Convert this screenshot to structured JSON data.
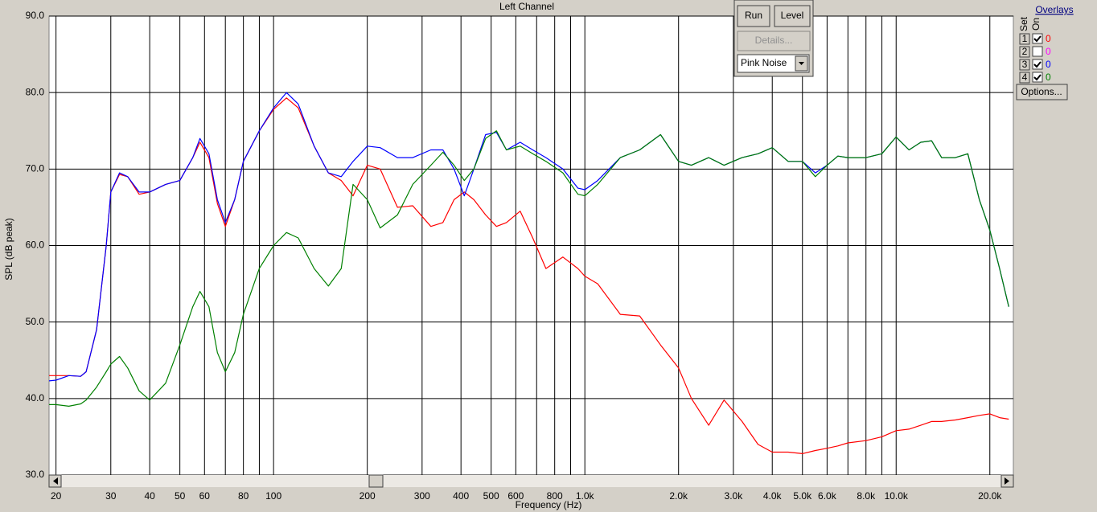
{
  "chart_data": {
    "type": "line",
    "title": "Left Channel",
    "xlabel": "Frequency (Hz)",
    "ylabel": "SPL (dB peak)",
    "log_x": true,
    "grid": true,
    "x": [
      19,
      20,
      22,
      24,
      25,
      27,
      29,
      30,
      32,
      34,
      37,
      40,
      45,
      50,
      55,
      58,
      62,
      66,
      70,
      75,
      80,
      90,
      100,
      110,
      120,
      135,
      150,
      165,
      180,
      200,
      220,
      250,
      280,
      320,
      350,
      380,
      410,
      440,
      480,
      520,
      560,
      620,
      680,
      750,
      850,
      950,
      1000,
      1100,
      1300,
      1500,
      1750,
      2000,
      2200,
      2500,
      2800,
      3200,
      3600,
      4000,
      4500,
      5000,
      5500,
      6000,
      6500,
      7000,
      8000,
      9000,
      10000,
      11000,
      12000,
      13000,
      14000,
      15500,
      17000,
      18500,
      20000,
      21500,
      23000
    ],
    "series": [
      {
        "color": "#ff0000",
        "values": [
          43,
          43,
          43,
          42.9,
          43.5,
          49,
          60,
          67,
          69.3,
          69,
          66.7,
          67,
          68,
          68.5,
          71.5,
          73.5,
          71.5,
          65.5,
          62.5,
          66,
          71,
          75,
          77.8,
          79.3,
          78,
          73,
          69.5,
          68.5,
          66.5,
          70.5,
          70,
          65,
          65.2,
          62.5,
          63,
          66,
          67,
          66,
          64,
          62.5,
          63,
          64.5,
          61,
          57,
          58.5,
          57,
          56,
          55,
          51,
          50.8,
          47,
          44,
          40,
          36.5,
          39.8,
          37,
          34,
          33,
          33,
          32.8,
          33.2,
          33.5,
          33.8,
          34.2,
          34.5,
          35,
          35.8,
          36,
          36.5,
          37,
          37,
          37.2,
          37.5,
          37.8,
          38,
          37.5,
          37.3
        ]
      },
      {
        "color": "#0000ff",
        "values": [
          42.3,
          42.4,
          43,
          42.9,
          43.5,
          49,
          60,
          67,
          69.5,
          69,
          67,
          67,
          68,
          68.5,
          71.5,
          74,
          72,
          66,
          63,
          66,
          71,
          75,
          78,
          80,
          78.5,
          73,
          69.5,
          69,
          71,
          73,
          72.8,
          71.5,
          71.5,
          72.5,
          72.5,
          70,
          66.5,
          70,
          74.5,
          74.8,
          72.5,
          73.5,
          72.5,
          71.5,
          70,
          67.5,
          67.3,
          68.5,
          71.5,
          72.5,
          74.5,
          71,
          70.5,
          71.5,
          70.5,
          71.5,
          72,
          72.8,
          71,
          71,
          69.5,
          70.5,
          71.7,
          71.5,
          71.5,
          72,
          74.2,
          72.5,
          73.5,
          73.7,
          71.5,
          71.5,
          72,
          66,
          62,
          57,
          52
        ]
      },
      {
        "color": "#008000",
        "values": [
          39.2,
          39.2,
          39,
          39.3,
          39.8,
          41.5,
          43.5,
          44.5,
          45.5,
          44,
          41,
          39.8,
          42,
          47,
          52,
          54,
          52,
          46,
          43.5,
          46,
          51,
          57,
          60,
          61.7,
          61,
          57,
          54.7,
          57,
          68,
          66,
          62.3,
          64,
          68,
          70.5,
          72.2,
          70.5,
          68.5,
          70,
          74,
          75,
          72.5,
          73,
          72,
          71,
          69.5,
          66.7,
          66.5,
          68,
          71.5,
          72.5,
          74.5,
          71,
          70.5,
          71.5,
          70.5,
          71.5,
          72,
          72.8,
          71,
          71,
          69,
          70.5,
          71.7,
          71.5,
          71.5,
          72,
          74.2,
          72.5,
          73.5,
          73.7,
          71.5,
          71.5,
          72,
          66,
          62,
          57,
          52
        ]
      }
    ],
    "xlim": [
      19,
      23800
    ],
    "ylim": [
      30,
      90
    ],
    "yticks": [
      {
        "value": 30,
        "label": "30.0"
      },
      {
        "value": 40,
        "label": "40.0"
      },
      {
        "value": 50,
        "label": "50.0"
      },
      {
        "value": 60,
        "label": "60.0"
      },
      {
        "value": 70,
        "label": "70.0"
      },
      {
        "value": 80,
        "label": "80.0"
      },
      {
        "value": 90,
        "label": "90.0"
      }
    ],
    "xticks": [
      20,
      30,
      40,
      50,
      60,
      {
        "value": 70,
        "label": null
      },
      80,
      {
        "value": 90,
        "label": null
      },
      100,
      200,
      300,
      400,
      500,
      600,
      {
        "value": 700,
        "label": null
      },
      800,
      {
        "value": 900,
        "label": null
      },
      {
        "value": 1000,
        "label": "1.0k"
      },
      {
        "value": 2000,
        "label": "2.0k"
      },
      {
        "value": 3000,
        "label": "3.0k"
      },
      {
        "value": 4000,
        "label": "4.0k"
      },
      {
        "value": 5000,
        "label": "5.0k"
      },
      {
        "value": 6000,
        "label": "6.0k"
      },
      {
        "value": 7000,
        "label": null
      },
      {
        "value": 8000,
        "label": "8.0k"
      },
      {
        "value": 9000,
        "label": null
      },
      {
        "value": 10000,
        "label": "10.0k"
      },
      {
        "value": 20000,
        "label": "20.0k"
      }
    ]
  },
  "controls": {
    "run": "Run",
    "level": "Level",
    "details": "Details...",
    "generator": "Pink Noise"
  },
  "overlays": {
    "title": "Overlays",
    "set_label": "Set",
    "on_label": "On",
    "options": "Options...",
    "items": [
      {
        "set": "1",
        "checked": true,
        "value": "0",
        "color": "#ff0000"
      },
      {
        "set": "2",
        "checked": false,
        "value": "0",
        "color": "#ff00ff"
      },
      {
        "set": "3",
        "checked": true,
        "value": "0",
        "color": "#0000ff"
      },
      {
        "set": "4",
        "checked": true,
        "value": "0",
        "color": "#008000"
      }
    ]
  }
}
